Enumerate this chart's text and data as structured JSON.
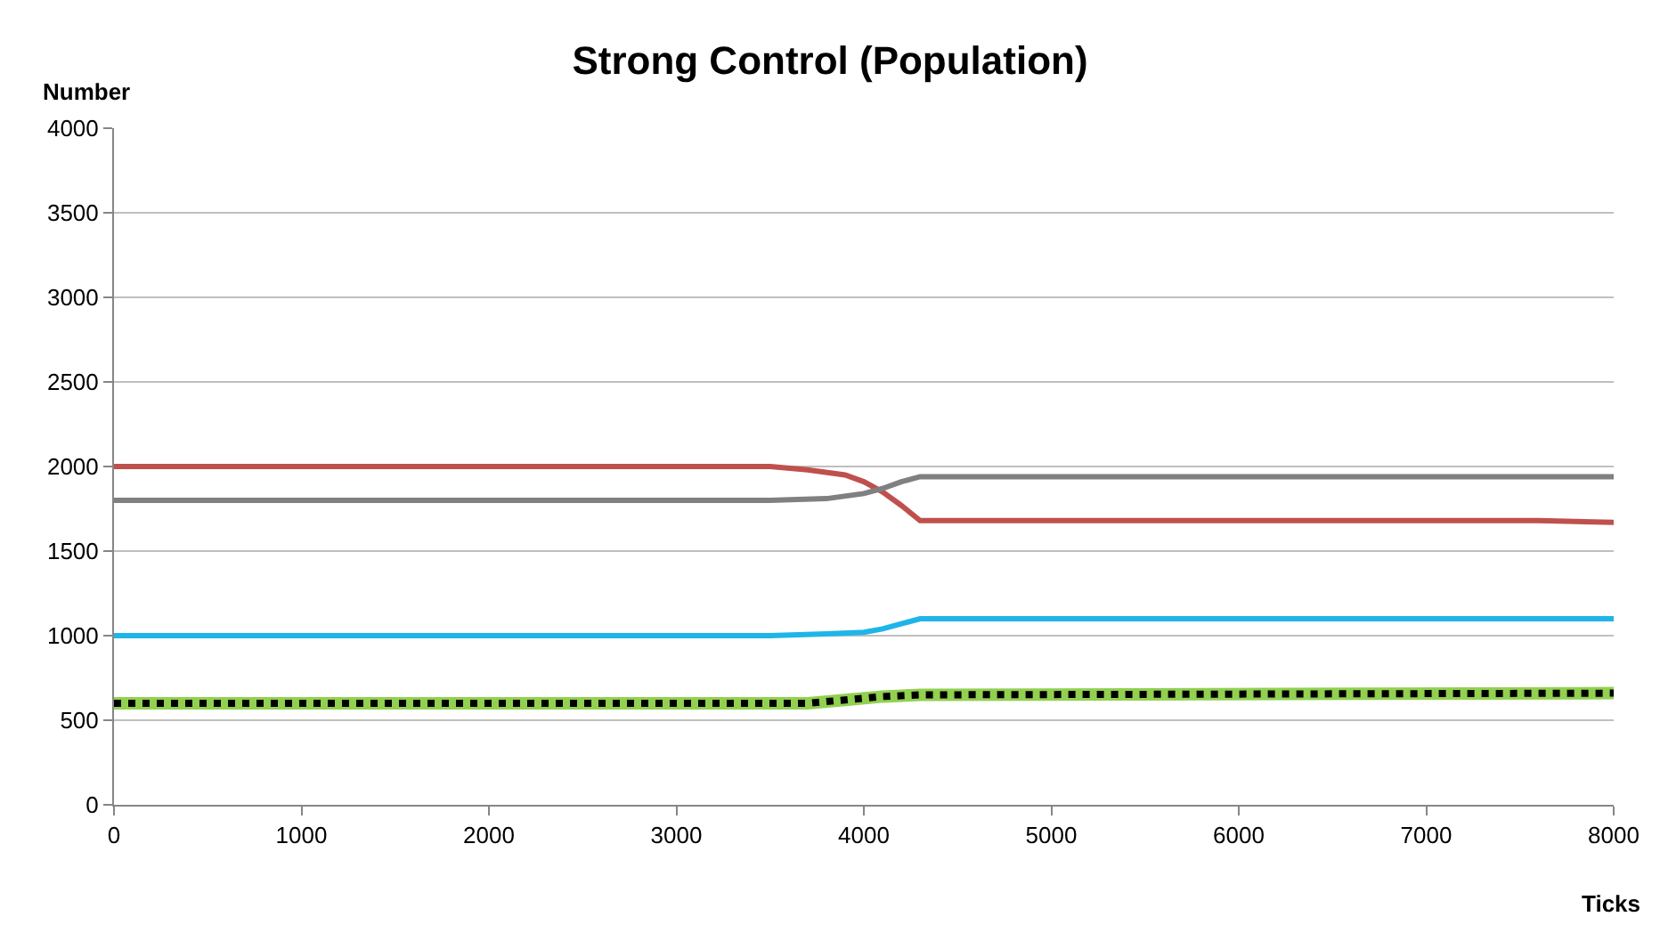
{
  "chart_data": {
    "type": "line",
    "title": "Strong Control (Population)",
    "xlabel": "Ticks",
    "ylabel": "Number",
    "xlim": [
      0,
      8000
    ],
    "xticks": [
      0,
      1000,
      2000,
      3000,
      4000,
      5000,
      6000,
      7000,
      8000
    ],
    "ylim": [
      0,
      4000
    ],
    "yticks": [
      0,
      500,
      1000,
      1500,
      2000,
      2500,
      3000,
      3500,
      4000
    ],
    "grid": "y",
    "marker": "none",
    "series": [
      {
        "color": "#c0504d",
        "line_style": "solid",
        "x": [
          0,
          3500,
          3700,
          3900,
          4000,
          4100,
          4200,
          4300,
          7600,
          8000
        ],
        "values": [
          2000,
          2000,
          1980,
          1950,
          1910,
          1850,
          1770,
          1680,
          1680,
          1670
        ]
      },
      {
        "color": "#808080",
        "line_style": "solid",
        "x": [
          0,
          3500,
          3800,
          4000,
          4100,
          4200,
          4300,
          8000
        ],
        "values": [
          1800,
          1800,
          1810,
          1840,
          1870,
          1910,
          1940,
          1940
        ]
      },
      {
        "color": "#1fb5e8",
        "line_style": "solid",
        "x": [
          0,
          3500,
          3800,
          4000,
          4100,
          4200,
          4300,
          8000
        ],
        "values": [
          1000,
          1000,
          1010,
          1020,
          1040,
          1070,
          1100,
          1100
        ]
      },
      {
        "color": "#92d050",
        "line_style": "solid",
        "x": [
          0,
          3700,
          3900,
          4100,
          4300,
          8000
        ],
        "values": [
          600,
          600,
          620,
          640,
          650,
          660
        ]
      },
      {
        "color": "#000000",
        "line_style": "dotted",
        "x": [
          0,
          3700,
          3900,
          4100,
          4300,
          8000
        ],
        "values": [
          600,
          600,
          620,
          640,
          650,
          660
        ]
      }
    ]
  }
}
